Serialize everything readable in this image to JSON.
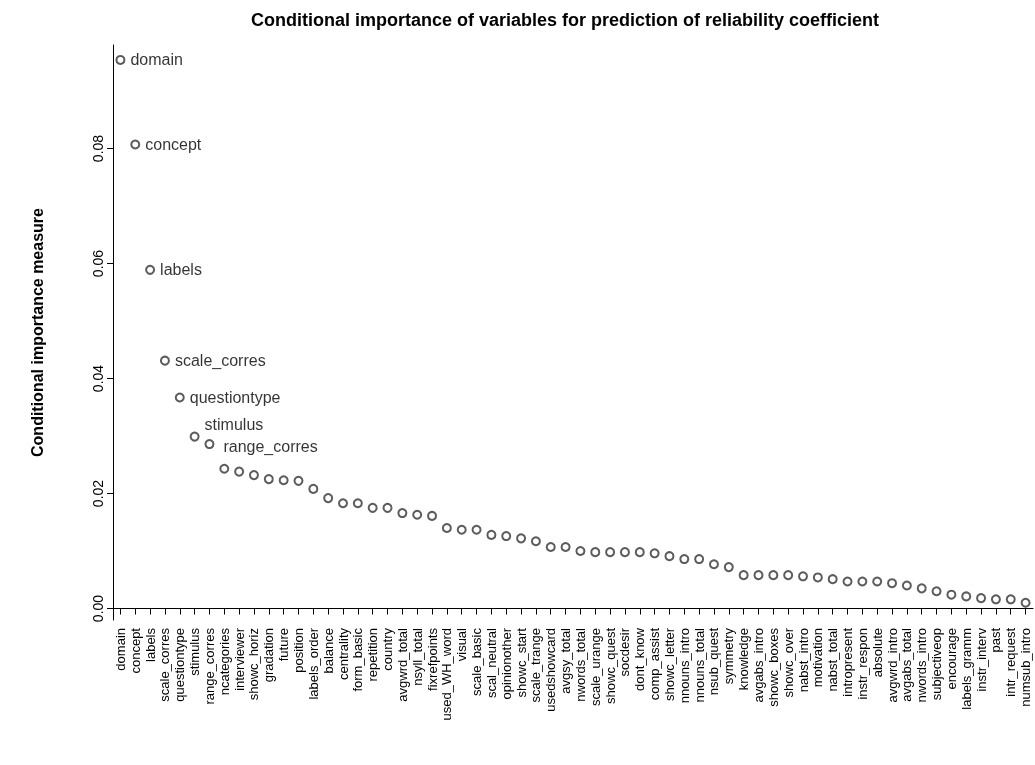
{
  "chart_data": {
    "type": "scatter",
    "title": "Conditional importance of variables for prediction of reliability coefficient",
    "ylabel": "Conditional importance measure",
    "categories": [
      "domain",
      "concept",
      "labels",
      "scale_corres",
      "questiontype",
      "stimulus",
      "range_corres",
      "ncategories",
      "interviewer",
      "showc_horiz",
      "gradation",
      "future",
      "position",
      "labels_order",
      "balance",
      "centrality",
      "form_basic",
      "repetition",
      "country",
      "avgwrd_total",
      "nsyll_total",
      "fixrefpoints",
      "used_WH_word",
      "visual",
      "scale_basic",
      "scal_neutral",
      "opinionother",
      "showc_start",
      "scale_trange",
      "usedshowcard",
      "avgsy_total",
      "nwords_total",
      "scale_urange",
      "showc_quest",
      "socdesir",
      "dont_know",
      "comp_assist",
      "showc_letter",
      "nnouns_intro",
      "nnouns_total",
      "nsub_quest",
      "symmetry",
      "knowledge",
      "avgabs_intro",
      "showc_boxes",
      "showc_over",
      "nabst_intro",
      "motivation",
      "nabst_total",
      "intropresent",
      "instr_respon",
      "absolute",
      "avgwrd_intro",
      "avgabs_total",
      "nwords_intro",
      "subjectiveop",
      "encourage",
      "labels_gramm",
      "instr_interv",
      "past",
      "intr_request",
      "numsub_intro"
    ],
    "series": [
      {
        "color": "#333333",
        "values": [
          0.0954,
          0.0807,
          0.0589,
          0.0431,
          0.0367,
          0.0299,
          0.0286,
          0.0243,
          0.0238,
          0.0232,
          0.0225,
          0.0223,
          0.0222,
          0.0208,
          0.0192,
          0.0183,
          0.0183,
          0.0175,
          0.0175,
          0.0166,
          0.0163,
          0.0161,
          0.014,
          0.0137,
          0.0137,
          0.0128,
          0.0126,
          0.0122,
          0.0117,
          0.0107,
          0.0107,
          0.01,
          0.0098,
          0.0098,
          0.0098,
          0.0098,
          0.0096,
          0.0091,
          0.0086,
          0.0086,
          0.0077,
          0.0072,
          0.0058,
          0.0058,
          0.0058,
          0.0058,
          0.0056,
          0.0054,
          0.0051,
          0.0047,
          0.0047,
          0.0047,
          0.0044,
          0.004,
          0.0035,
          0.003,
          0.0024,
          0.0021,
          0.0018,
          0.0016,
          0.0016,
          0.001
        ]
      }
    ],
    "annotations": [
      {
        "text": "domain",
        "x": "domain",
        "y": 0.0954
      },
      {
        "text": "concept",
        "x": "concept",
        "y": 0.0807
      },
      {
        "text": "labels",
        "x": "labels",
        "y": 0.0589
      },
      {
        "text": "scale_corres",
        "x": "scale_corres",
        "y": 0.0431
      },
      {
        "text": "questiontype",
        "x": "questiontype",
        "y": 0.0367
      },
      {
        "text": "stimulus",
        "x": "stimulus",
        "y": 0.0299
      },
      {
        "text": "range_corres",
        "x": "range_corres",
        "y": 0.0286
      }
    ],
    "ylim": [
      -0.002,
      0.098
    ],
    "yticks": [
      {
        "value": 0,
        "label": "0.00"
      },
      {
        "value": 0.02,
        "label": "0.02"
      },
      {
        "value": 0.04,
        "label": "0.04"
      },
      {
        "value": 0.06,
        "label": "0.06"
      },
      {
        "value": 0.08,
        "label": "0.08"
      }
    ],
    "marker": "circle",
    "grid": false
  }
}
